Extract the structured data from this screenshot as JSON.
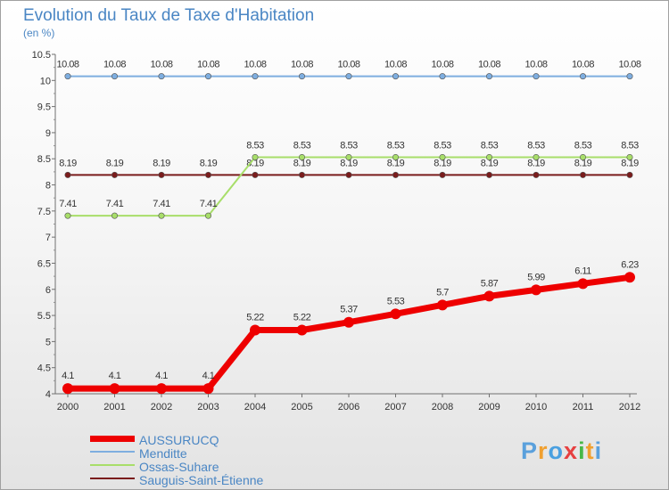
{
  "title": "Evolution du Taux de Taxe d'Habitation",
  "subtitle": "(en %)",
  "colors": {
    "AUSSURUCQ": "#ee0000",
    "Menditte": "#7eaee0",
    "Ossas-Suhare": "#a8de6a",
    "Sauguis-Saint-Étienne": "#7a1c1c"
  },
  "brand": {
    "letters": [
      "P",
      "r",
      "o",
      "x",
      "i",
      "t",
      "i"
    ],
    "colors": [
      "#5aa0dc",
      "#f0a030",
      "#4aa0e0",
      "#e64040",
      "#48b848",
      "#f0a030",
      "#5aa0dc"
    ]
  },
  "chart_data": {
    "type": "line",
    "title": "Evolution du Taux de Taxe d'Habitation",
    "ylabel": "(en %)",
    "xlabel": "",
    "categories": [
      "2000",
      "2001",
      "2002",
      "2003",
      "2004",
      "2005",
      "2006",
      "2007",
      "2008",
      "2009",
      "2010",
      "2011",
      "2012"
    ],
    "ylim": [
      4,
      10.5
    ],
    "yticks": [
      "4",
      "4.5",
      "5",
      "5.5",
      "6",
      "6.5",
      "7",
      "7.5",
      "8",
      "8.5",
      "9",
      "9.5",
      "10",
      "10.5"
    ],
    "grid": false,
    "legend_position": "bottom-left",
    "series": [
      {
        "name": "AUSSURUCQ",
        "values": [
          4.1,
          4.1,
          4.1,
          4.1,
          5.22,
          5.22,
          5.37,
          5.53,
          5.7,
          5.87,
          5.99,
          6.11,
          6.23
        ],
        "labels": [
          "4.1",
          "4.1",
          "4.1",
          "4.1",
          "5.22",
          "5.22",
          "5.37",
          "5.53",
          "5.7",
          "5.87",
          "5.99",
          "6.11",
          "6.23"
        ]
      },
      {
        "name": "Menditte",
        "values": [
          10.08,
          10.08,
          10.08,
          10.08,
          10.08,
          10.08,
          10.08,
          10.08,
          10.08,
          10.08,
          10.08,
          10.08,
          10.08
        ],
        "labels": [
          "10.08",
          "10.08",
          "10.08",
          "10.08",
          "10.08",
          "10.08",
          "10.08",
          "10.08",
          "10.08",
          "10.08",
          "10.08",
          "10.08",
          "10.08"
        ]
      },
      {
        "name": "Ossas-Suhare",
        "values": [
          7.41,
          7.41,
          7.41,
          7.41,
          8.53,
          8.53,
          8.53,
          8.53,
          8.53,
          8.53,
          8.53,
          8.53,
          8.53
        ],
        "labels": [
          "7.41",
          "7.41",
          "7.41",
          "7.41",
          "8.53",
          "8.53",
          "8.53",
          "8.53",
          "8.53",
          "8.53",
          "8.53",
          "8.53",
          "8.53"
        ]
      },
      {
        "name": "Sauguis-Saint-Étienne",
        "values": [
          8.19,
          8.19,
          8.19,
          8.19,
          8.19,
          8.19,
          8.19,
          8.19,
          8.19,
          8.19,
          8.19,
          8.19,
          8.19
        ],
        "labels": [
          "8.19",
          "8.19",
          "8.19",
          "8.19",
          "8.19",
          "8.19",
          "8.19",
          "8.19",
          "8.19",
          "8.19",
          "8.19",
          "8.19",
          "8.19"
        ]
      }
    ]
  }
}
